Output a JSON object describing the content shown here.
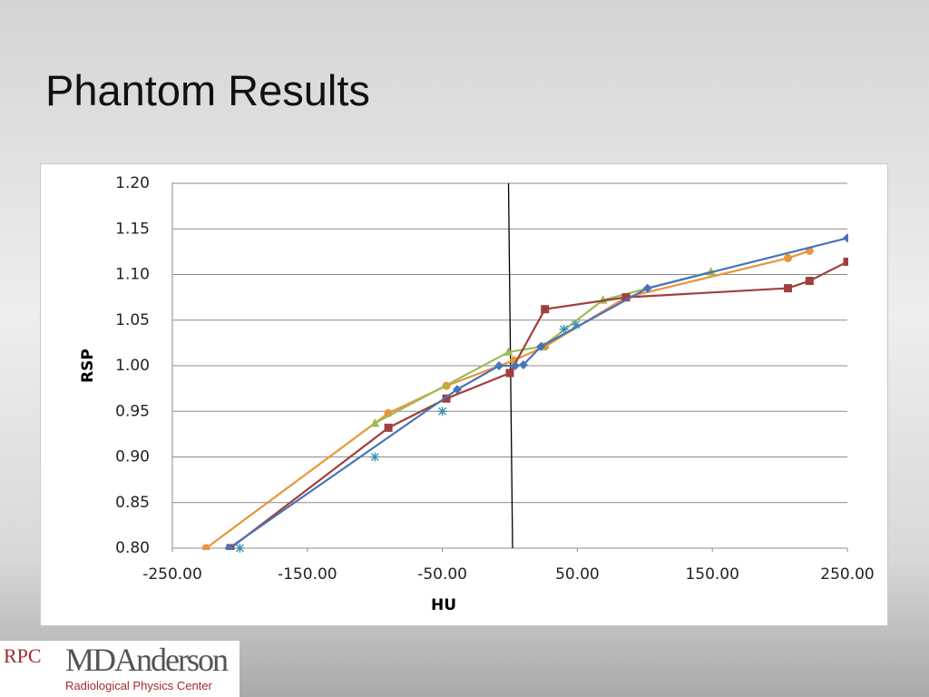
{
  "chart_data": {
    "type": "line",
    "title": "Phantom Results",
    "x_label": "HU",
    "y_label": "RSP",
    "xlim": [
      -250,
      250
    ],
    "ylim": [
      0.8,
      1.2
    ],
    "xticks": [
      {
        "value": -250,
        "label": "-250.00"
      },
      {
        "value": -150,
        "label": "-150.00"
      },
      {
        "value": -50,
        "label": "-50.00"
      },
      {
        "value": 50,
        "label": "50.00"
      },
      {
        "value": 150,
        "label": "150.00"
      },
      {
        "value": 250,
        "label": "250.00"
      }
    ],
    "yticks": [
      {
        "value": 0.8,
        "label": "0.80"
      },
      {
        "value": 0.85,
        "label": "0.85"
      },
      {
        "value": 0.9,
        "label": "0.90"
      },
      {
        "value": 0.95,
        "label": "0.95"
      },
      {
        "value": 1.0,
        "label": "1.00"
      },
      {
        "value": 1.05,
        "label": "1.05"
      },
      {
        "value": 1.1,
        "label": "1.10"
      },
      {
        "value": 1.15,
        "label": "1.15"
      },
      {
        "value": 1.2,
        "label": "1.20"
      }
    ],
    "grid": true,
    "series": [
      {
        "color": "#000000",
        "marker": "none",
        "line": true,
        "x": [
          -1,
          2
        ],
        "values": [
          1.2,
          0.8
        ]
      },
      {
        "color": "#e8963a",
        "marker": "circle",
        "line": true,
        "x": [
          -225,
          -90,
          -47,
          3,
          26,
          86,
          206,
          222
        ],
        "values": [
          0.8,
          0.948,
          0.978,
          1.006,
          1.021,
          1.075,
          1.118,
          1.126
        ]
      },
      {
        "color": "#9bbb59",
        "marker": "triangle",
        "line": true,
        "x": [
          -100,
          -1,
          24,
          69,
          149
        ],
        "values": [
          0.937,
          1.015,
          1.021,
          1.072,
          1.103
        ]
      },
      {
        "color": "#a0403d",
        "marker": "square",
        "line": true,
        "x": [
          -207,
          -90,
          -47,
          0,
          26,
          86,
          206,
          222,
          250
        ],
        "values": [
          0.8,
          0.932,
          0.964,
          0.992,
          1.062,
          1.075,
          1.085,
          1.093,
          1.114
        ]
      },
      {
        "color": "#4a72b8",
        "marker": "diamond",
        "line": true,
        "x": [
          -208,
          -39,
          -8,
          4,
          10,
          23,
          102,
          250
        ],
        "values": [
          0.8,
          0.974,
          1.0,
          1.0,
          1.001,
          1.021,
          1.085,
          1.14
        ]
      },
      {
        "color": "#3a8fb0",
        "marker": "star",
        "line": false,
        "x": [
          -200,
          -100,
          -50,
          40,
          49
        ],
        "values": [
          0.8,
          0.9,
          0.95,
          1.04,
          1.045
        ]
      }
    ]
  },
  "logo": {
    "mark": "RPC",
    "name": "MDAnderson",
    "subtitle": "Radiological Physics Center"
  }
}
